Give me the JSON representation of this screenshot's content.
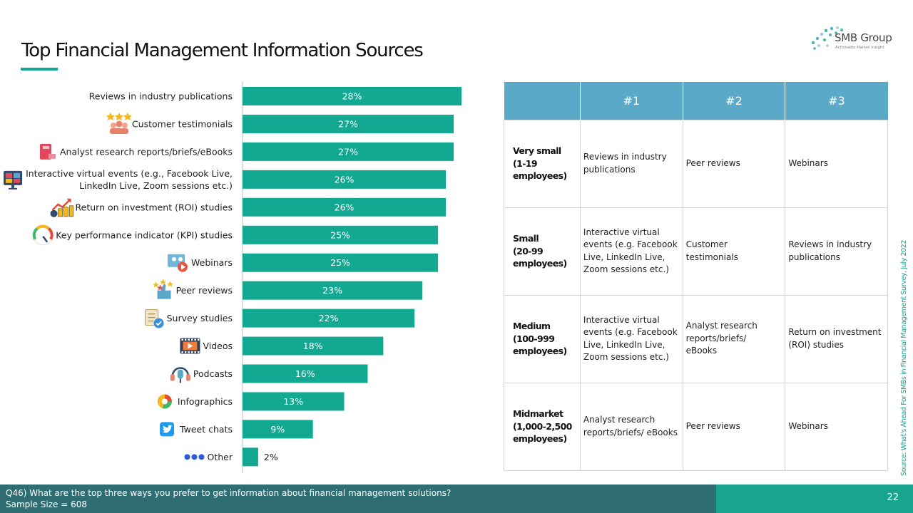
{
  "header": {
    "title": "Top Financial Management Information Sources",
    "logo_name": "SMB Group",
    "logo_tagline": "Actionable Market Insight"
  },
  "colors": {
    "bar": "#13a892",
    "header_blue": "#5aa9c9",
    "footer_dark": "#2e6e73",
    "footer_accent": "#17a58f"
  },
  "chart_data": {
    "type": "bar",
    "orientation": "horizontal",
    "categories": [
      "Reviews in industry publications",
      "Customer testimonials",
      "Analyst research reports/briefs/eBooks",
      "Interactive virtual events (e.g., Facebook Live, LinkedIn Live, Zoom sessions etc.)",
      "Return on investment (ROI) studies",
      "Key performance indicator (KPI) studies",
      "Webinars",
      "Peer reviews",
      "Survey studies",
      "Videos",
      "Podcasts",
      "Infographics",
      "Tweet chats",
      "Other"
    ],
    "category_lines": [
      [
        "Reviews in industry publications"
      ],
      [
        "Customer testimonials"
      ],
      [
        "Analyst research reports/briefs/eBooks"
      ],
      [
        "Interactive virtual events (e.g., Facebook Live,",
        "LinkedIn Live, Zoom sessions etc.)"
      ],
      [
        "Return on investment (ROI) studies"
      ],
      [
        "Key performance indicator (KPI) studies"
      ],
      [
        "Webinars"
      ],
      [
        "Peer reviews"
      ],
      [
        "Survey studies"
      ],
      [
        "Videos"
      ],
      [
        "Podcasts"
      ],
      [
        "Infographics"
      ],
      [
        "Tweet chats"
      ],
      [
        "Other"
      ]
    ],
    "values": [
      28,
      27,
      27,
      26,
      26,
      25,
      25,
      23,
      22,
      18,
      16,
      13,
      9,
      2
    ],
    "value_labels": [
      "28%",
      "27%",
      "27%",
      "26%",
      "26%",
      "25%",
      "25%",
      "23%",
      "22%",
      "18%",
      "16%",
      "13%",
      "9%",
      "2%"
    ],
    "icons": [
      "",
      "testimonial-icon",
      "book-icon",
      "virtual-event-icon",
      "roi-chart-icon",
      "gauge-icon",
      "webinar-icon",
      "thumbs-up-icon",
      "survey-icon",
      "video-icon",
      "podcast-icon",
      "pie-chart-icon",
      "twitter-icon",
      "dots-icon"
    ],
    "xlim": [
      0,
      30
    ],
    "grid": false,
    "legend": "none"
  },
  "table": {
    "headers": [
      "",
      "#1",
      "#2",
      "#3"
    ],
    "rows": [
      {
        "segment": [
          "Very small",
          "(1-19",
          "employees)"
        ],
        "c1": [
          "Reviews in industry",
          "publications"
        ],
        "c2": [
          "Peer reviews"
        ],
        "c3": [
          "Webinars"
        ]
      },
      {
        "segment": [
          "Small",
          "(20-99",
          "employees)"
        ],
        "c1": [
          "Interactive virtual",
          "events (e.g. Facebook",
          "Live, LinkedIn Live,",
          "Zoom sessions etc.)"
        ],
        "c2": [
          "Customer testimonials"
        ],
        "c3": [
          "Reviews in industry",
          "publications"
        ]
      },
      {
        "segment": [
          "Medium",
          "(100-999",
          "employees)"
        ],
        "c1": [
          "Interactive virtual",
          "events (e.g. Facebook",
          "Live, LinkedIn Live,",
          "Zoom sessions etc.)"
        ],
        "c2": [
          "Analyst research",
          "reports/briefs/",
          "eBooks"
        ],
        "c3": [
          "Return on investment",
          "(ROI) studies"
        ]
      },
      {
        "segment": [
          "Midmarket",
          "(1,000-2,500",
          "employees)"
        ],
        "c1": [
          "Analyst research",
          "reports/briefs/ eBooks"
        ],
        "c2": [
          "Peer reviews"
        ],
        "c3": [
          "Webinars"
        ]
      }
    ]
  },
  "source": "Source: What's Ahead For SMBs in Financial Management Survey, July 2022",
  "footer": {
    "question": "Q46) What are the top three ways you prefer to get information  about financial management solutions?",
    "sample": "Sample Size = 608",
    "page_number": "22"
  }
}
